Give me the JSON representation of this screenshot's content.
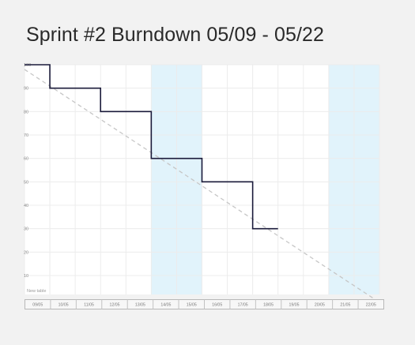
{
  "chart_data": {
    "type": "line",
    "title": "Sprint #2 Burndown 05/09 - 05/22",
    "xlabel": "",
    "ylabel": "",
    "categories": [
      "09/05",
      "10/05",
      "11/05",
      "12/05",
      "13/05",
      "14/05",
      "15/05",
      "16/05",
      "17/05",
      "18/05",
      "19/05",
      "20/05",
      "21/05",
      "22/05"
    ],
    "ylim": [
      0,
      100
    ],
    "yticks": [
      "100",
      "90",
      "80",
      "70",
      "60",
      "50",
      "40",
      "30",
      "20",
      "10"
    ],
    "series": [
      {
        "kind": "step",
        "color": "#1a1a3a",
        "points": [
          [
            0,
            100
          ],
          [
            1,
            100
          ],
          [
            1,
            90
          ],
          [
            3,
            90
          ],
          [
            3,
            80
          ],
          [
            5,
            80
          ],
          [
            5,
            60
          ],
          [
            7,
            60
          ],
          [
            7,
            50
          ],
          [
            9,
            50
          ],
          [
            9,
            30
          ],
          [
            10,
            30
          ]
        ]
      },
      {
        "kind": "ideal",
        "color": "#c6c6c6",
        "dashed": true,
        "points": [
          [
            0,
            98
          ],
          [
            14,
            0
          ]
        ]
      }
    ],
    "weekend_bands": [
      [
        5,
        7
      ],
      [
        12,
        14
      ]
    ],
    "band_color": "#e1f3fb",
    "grid": true,
    "footnote": "New table"
  }
}
